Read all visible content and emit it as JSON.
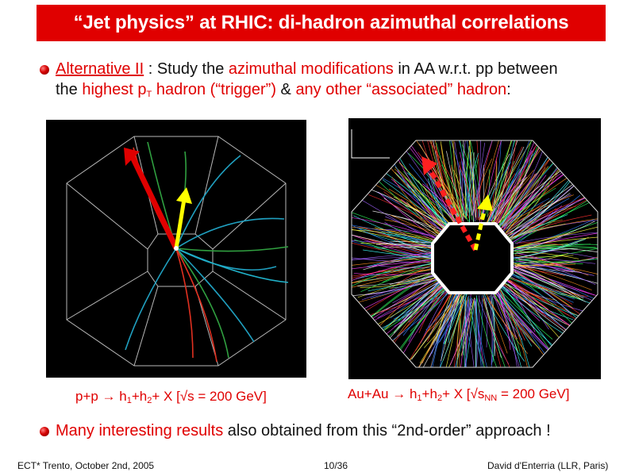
{
  "title": "“Jet physics” at RHIC: di-hadron azimuthal correlations",
  "bullet1": {
    "alt": "Alternative II",
    "t1": " : Study the ",
    "az": "azimuthal modifications",
    "t2": " in AA w.r.t. pp between",
    "t3": "the ",
    "highest": "highest p",
    "sub_T": "T",
    "hadron": " hadron (“trigger”)",
    "t4": " & ",
    "anyother": "any other “associated” hadron",
    "t5": ":"
  },
  "captions": {
    "pp": {
      "a": "p+p → h",
      "s1": "1",
      "b": "+h",
      "s2": "2",
      "c": "+ X  [√s = 200 GeV]"
    },
    "auau": {
      "a": "Au+Au → h",
      "s1": "1",
      "b": "+h",
      "s2": "2",
      "c": "+ X [√s",
      "s3": "NN",
      "d": " = 200 GeV]"
    }
  },
  "bullet2": {
    "many": "Many interesting results",
    "rest": " also obtained from this “2nd-order” approach !"
  },
  "footer": {
    "left": "ECT* Trento, October 2nd, 2005",
    "center": "10/36",
    "right": "David d'Enterria (LLR, Paris)"
  },
  "colors": {
    "accent": "#e00000",
    "arrow_trigger": "#e00000",
    "arrow_assoc": "#ffff00"
  }
}
